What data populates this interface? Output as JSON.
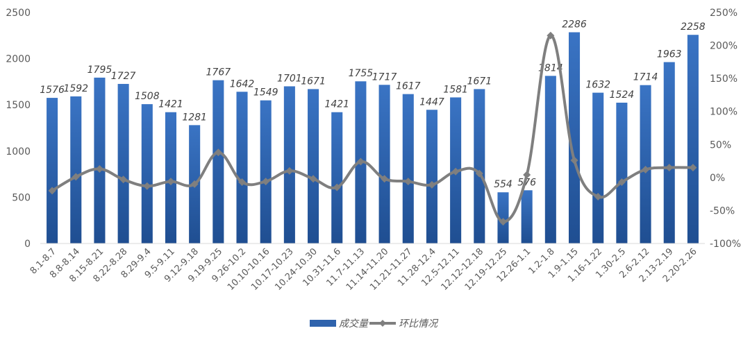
{
  "chart_data": {
    "type": "bar",
    "categories": [
      "8.1-8.7",
      "8.8-8.14",
      "8.15-8.21",
      "8.22-8.28",
      "8.29-9.4",
      "9.5-9.11",
      "9.12-9.18",
      "9.19-9.25",
      "9.26-10.2",
      "10.10-10.16",
      "10.17-10.23",
      "10.24-10.30",
      "10.31-11.6",
      "11.7-11.13",
      "11.14-11.20",
      "11.21-11.27",
      "11.28-12.4",
      "12.5-12.11",
      "12.12-12.18",
      "12.19-12.25",
      "12.26-1.1",
      "1.2-1.8",
      "1.9-1.15",
      "1.16-1.22",
      "1.30-2.5",
      "2.6-2.12",
      "2.13-2.19",
      "2.20-2.26"
    ],
    "series": [
      {
        "name": "成交量",
        "type": "bar",
        "axis": "left",
        "color": "#2f63ad",
        "values": [
          1576,
          1592,
          1795,
          1727,
          1508,
          1421,
          1281,
          1767,
          1642,
          1549,
          1701,
          1671,
          1421,
          1755,
          1717,
          1617,
          1447,
          1581,
          1671,
          554,
          576,
          1814,
          2286,
          1632,
          1524,
          1714,
          1963,
          2258
        ],
        "labels": [
          "1576",
          "1592",
          "1795",
          "1727",
          "1508",
          "1421",
          "1281",
          "1767",
          "1642",
          "1549",
          "1701",
          "1671",
          "1421",
          "1755",
          "1717",
          "1617",
          "1447",
          "1581",
          "1671",
          "554",
          "576",
          "1814",
          "2286",
          "1632",
          "1524",
          "1714",
          "1963",
          "2258"
        ]
      },
      {
        "name": "环比情况",
        "type": "line",
        "axis": "right",
        "color": "#7f7f7f",
        "values": [
          -20,
          1,
          13,
          -3,
          -13,
          -6,
          -10,
          38,
          -7,
          -6,
          10,
          -2,
          -15,
          24,
          -2,
          -6,
          -11,
          9,
          6,
          -67,
          4,
          215,
          26,
          -29,
          -7,
          12,
          15,
          15
        ]
      }
    ],
    "y_left": {
      "min": 0,
      "max": 2500,
      "ticks": [
        "0",
        "500",
        "1000",
        "1500",
        "2000",
        "2500"
      ]
    },
    "y_right": {
      "min": -100,
      "max": 250,
      "ticks": [
        "-100%",
        "-50%",
        "0%",
        "50%",
        "100%",
        "150%",
        "200%",
        "250%"
      ]
    },
    "grid": false,
    "legend_position": "bottom"
  }
}
